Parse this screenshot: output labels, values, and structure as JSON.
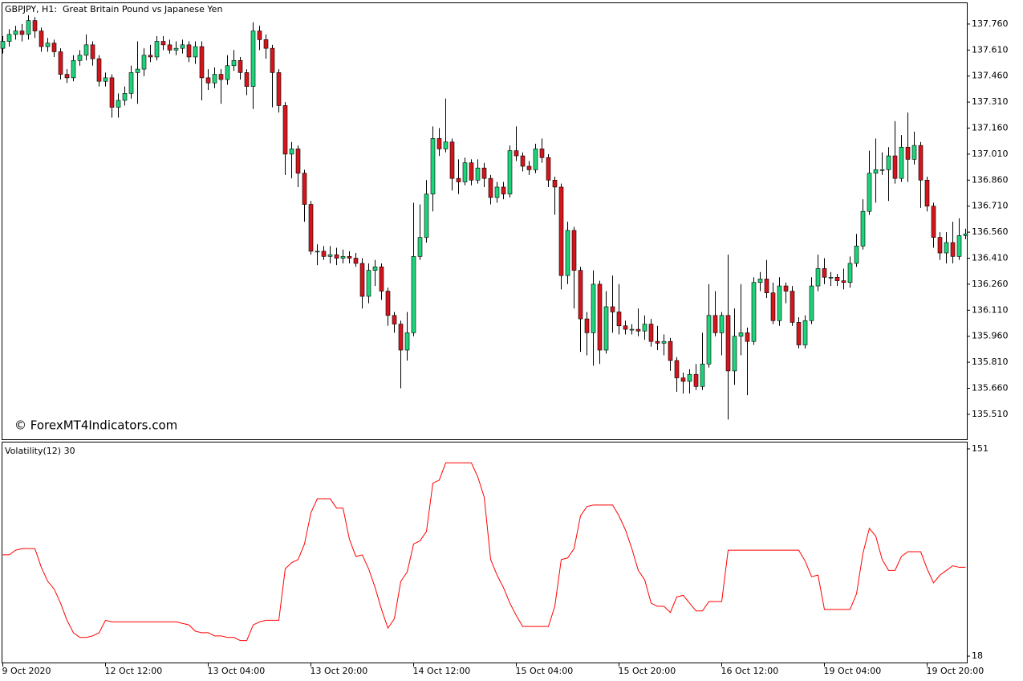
{
  "chart_data": [
    {
      "type": "candlestick",
      "title": "GBPJPY, H1:  Great Britain Pound vs Japanese Yen",
      "annotation": "© ForexMT4Indicators.com",
      "up_color": "#1ed47a",
      "down_color": "#d4161c",
      "wick_color": "#000000",
      "categories": [
        "9 Oct 2020",
        null,
        null,
        null,
        null,
        null,
        null,
        null,
        null,
        null,
        null,
        null,
        null,
        null,
        null,
        null,
        "12 Oct 12:00",
        null,
        null,
        null,
        null,
        null,
        null,
        null,
        null,
        null,
        null,
        null,
        null,
        null,
        null,
        null,
        "13 Oct 04:00",
        null,
        null,
        null,
        null,
        null,
        null,
        null,
        null,
        null,
        null,
        null,
        null,
        null,
        null,
        null,
        "13 Oct 20:00",
        null,
        null,
        null,
        null,
        null,
        null,
        null,
        null,
        null,
        null,
        null,
        null,
        null,
        null,
        null,
        "14 Oct 12:00",
        null,
        null,
        null,
        null,
        null,
        null,
        null,
        null,
        null,
        null,
        null,
        null,
        null,
        null,
        null,
        "15 Oct 04:00",
        null,
        null,
        null,
        null,
        null,
        null,
        null,
        null,
        null,
        null,
        null,
        null,
        null,
        null,
        null,
        "15 Oct 20:00",
        null,
        null,
        null,
        null,
        null,
        null,
        null,
        null,
        null,
        null,
        null,
        null,
        null,
        null,
        null,
        "16 Oct 12:00",
        null,
        null,
        null,
        null,
        null,
        null,
        null,
        null,
        null,
        null,
        null,
        null,
        null,
        null,
        null,
        "19 Oct 04:00",
        null,
        null,
        null,
        null,
        null,
        null,
        null,
        null,
        null,
        null,
        null,
        null,
        null,
        null,
        null,
        "19 Oct 20:00",
        null,
        null,
        null,
        null,
        null,
        null
      ],
      "open": [
        137.62,
        137.66,
        137.7,
        137.72,
        137.7,
        137.78,
        137.72,
        137.63,
        137.65,
        137.6,
        137.47,
        137.45,
        137.55,
        137.58,
        137.64,
        137.56,
        137.43,
        137.45,
        137.28,
        137.32,
        137.36,
        137.48,
        137.5,
        137.58,
        137.57,
        137.66,
        137.64,
        137.61,
        137.62,
        137.64,
        137.57,
        137.63,
        137.45,
        137.42,
        137.47,
        137.44,
        137.52,
        137.55,
        137.48,
        137.4,
        137.72,
        137.67,
        137.62,
        137.48,
        137.29,
        137.01,
        137.04,
        136.9,
        136.72,
        136.45,
        136.45,
        136.42,
        136.43,
        136.41,
        136.42,
        136.41,
        136.38,
        136.19,
        136.34,
        136.36,
        136.22,
        136.08,
        136.03,
        135.88,
        135.98,
        136.42,
        136.53,
        136.78,
        137.1,
        137.04,
        137.08,
        136.87,
        136.85,
        136.96,
        136.86,
        136.93,
        136.87,
        136.76,
        136.82,
        136.78,
        137.03,
        137.0,
        136.94,
        136.92,
        137.04,
        136.99,
        136.86,
        136.82,
        136.31,
        136.57,
        136.34,
        136.06,
        135.98,
        136.26,
        135.88,
        136.13,
        136.1,
        136.02,
        136.0,
        136.0,
        135.99,
        136.03,
        135.93,
        135.92,
        135.93,
        135.82,
        135.72,
        135.7,
        135.74,
        135.67,
        135.8,
        136.08,
        135.98,
        136.08,
        135.76,
        135.96,
        135.98,
        135.93,
        136.27,
        136.29,
        136.21,
        136.05,
        136.25,
        136.22,
        136.04,
        135.91,
        136.05,
        136.25,
        136.35,
        136.3,
        136.3,
        136.28,
        136.27,
        136.38,
        136.48,
        136.68,
        136.9,
        136.92,
        136.92,
        137.0,
        136.87,
        137.05,
        136.98,
        137.06,
        136.86,
        136.71,
        136.53,
        136.44,
        136.5,
        136.42,
        136.54
      ],
      "high": [
        137.69,
        137.73,
        137.75,
        137.76,
        137.81,
        137.8,
        137.74,
        137.68,
        137.67,
        137.62,
        137.5,
        137.58,
        137.61,
        137.7,
        137.66,
        137.58,
        137.48,
        137.47,
        137.36,
        137.4,
        137.52,
        137.66,
        137.62,
        137.64,
        137.69,
        137.69,
        137.67,
        137.66,
        137.67,
        137.66,
        137.66,
        137.66,
        137.5,
        137.51,
        137.5,
        137.58,
        137.61,
        137.57,
        137.5,
        137.77,
        137.75,
        137.7,
        137.64,
        137.5,
        137.31,
        137.08,
        137.06,
        136.92,
        136.74,
        136.49,
        136.48,
        136.48,
        136.47,
        136.46,
        136.45,
        136.44,
        136.41,
        136.38,
        136.4,
        136.38,
        136.24,
        136.1,
        136.05,
        136.1,
        136.73,
        136.72,
        136.86,
        137.17,
        137.16,
        137.33,
        137.1,
        136.98,
        136.99,
        136.98,
        136.98,
        136.96,
        136.89,
        136.85,
        136.85,
        137.06,
        137.17,
        137.02,
        136.97,
        137.07,
        137.1,
        137.01,
        136.88,
        136.84,
        136.62,
        136.59,
        136.36,
        136.1,
        136.34,
        136.28,
        136.22,
        136.31,
        136.26,
        136.05,
        136.03,
        136.12,
        136.08,
        136.06,
        136.02,
        135.97,
        135.95,
        135.84,
        135.75,
        135.77,
        135.8,
        135.98,
        136.26,
        136.22,
        136.1,
        136.43,
        136.12,
        136.26,
        136.01,
        136.3,
        136.33,
        136.4,
        136.27,
        136.3,
        136.27,
        136.25,
        136.07,
        136.08,
        136.3,
        136.43,
        136.41,
        136.33,
        136.32,
        136.35,
        136.42,
        136.55,
        136.75,
        137.03,
        137.1,
        137.02,
        137.05,
        137.2,
        137.12,
        137.25,
        137.14,
        137.08,
        136.88,
        136.73,
        136.56,
        136.56,
        136.62,
        136.64,
        136.58
      ],
      "low": [
        137.59,
        137.63,
        137.67,
        137.66,
        137.67,
        137.68,
        137.6,
        137.6,
        137.57,
        137.44,
        137.42,
        137.43,
        137.52,
        137.55,
        137.52,
        137.4,
        137.4,
        137.22,
        137.22,
        137.29,
        137.33,
        137.3,
        137.46,
        137.54,
        137.55,
        137.61,
        137.59,
        137.58,
        137.59,
        137.54,
        137.53,
        137.32,
        137.38,
        137.39,
        137.3,
        137.41,
        137.49,
        137.44,
        137.35,
        137.27,
        137.61,
        137.56,
        137.28,
        137.25,
        136.89,
        136.87,
        136.82,
        136.62,
        136.43,
        136.37,
        136.4,
        136.38,
        136.37,
        136.38,
        136.38,
        136.36,
        136.12,
        136.15,
        136.25,
        136.17,
        136.02,
        135.98,
        135.66,
        135.82,
        135.96,
        136.4,
        136.5,
        136.68,
        137.0,
        137.02,
        136.8,
        136.78,
        136.83,
        136.83,
        136.84,
        136.82,
        136.72,
        136.73,
        136.75,
        136.76,
        136.97,
        136.91,
        136.89,
        136.9,
        136.96,
        136.82,
        136.66,
        136.23,
        136.26,
        136.12,
        135.87,
        135.85,
        135.79,
        135.8,
        135.86,
        135.98,
        135.97,
        135.97,
        135.97,
        135.96,
        135.94,
        135.9,
        135.88,
        135.85,
        135.76,
        135.64,
        135.63,
        135.63,
        135.65,
        135.65,
        135.78,
        135.96,
        135.85,
        135.48,
        135.68,
        135.85,
        135.62,
        135.91,
        136.22,
        136.18,
        136.03,
        136.02,
        136.15,
        136.02,
        135.89,
        135.89,
        136.03,
        136.22,
        136.26,
        136.25,
        136.25,
        136.23,
        136.24,
        136.36,
        136.46,
        136.66,
        136.73,
        136.89,
        136.74,
        136.84,
        136.85,
        136.85,
        136.95,
        136.7,
        136.68,
        136.47,
        136.4,
        136.38,
        136.38,
        136.4,
        136.52
      ],
      "close": [
        137.66,
        137.7,
        137.72,
        137.7,
        137.78,
        137.72,
        137.63,
        137.65,
        137.6,
        137.47,
        137.45,
        137.55,
        137.58,
        137.64,
        137.56,
        137.43,
        137.45,
        137.28,
        137.32,
        137.36,
        137.48,
        137.5,
        137.58,
        137.57,
        137.66,
        137.64,
        137.61,
        137.62,
        137.64,
        137.57,
        137.63,
        137.45,
        137.42,
        137.47,
        137.44,
        137.52,
        137.55,
        137.48,
        137.4,
        137.72,
        137.67,
        137.62,
        137.48,
        137.29,
        137.01,
        137.04,
        136.9,
        136.72,
        136.45,
        136.45,
        136.42,
        136.43,
        136.41,
        136.42,
        136.41,
        136.38,
        136.19,
        136.34,
        136.36,
        136.22,
        136.08,
        136.03,
        135.88,
        135.98,
        136.42,
        136.53,
        136.78,
        137.1,
        137.04,
        137.08,
        136.87,
        136.85,
        136.96,
        136.86,
        136.93,
        136.87,
        136.76,
        136.82,
        136.78,
        137.03,
        137.0,
        136.94,
        136.92,
        137.04,
        136.99,
        136.86,
        136.82,
        136.31,
        136.57,
        136.34,
        136.06,
        135.98,
        136.26,
        135.88,
        136.13,
        136.1,
        136.02,
        136.0,
        136.0,
        135.99,
        136.03,
        135.93,
        135.92,
        135.93,
        135.82,
        135.72,
        135.7,
        135.74,
        135.67,
        135.8,
        136.08,
        135.98,
        136.08,
        135.76,
        135.96,
        135.98,
        135.93,
        136.27,
        136.29,
        136.21,
        136.05,
        136.25,
        136.22,
        136.04,
        135.91,
        136.05,
        136.25,
        136.35,
        136.3,
        136.3,
        136.28,
        136.27,
        136.38,
        136.48,
        136.68,
        136.9,
        136.92,
        136.92,
        137.0,
        136.87,
        137.05,
        136.98,
        137.06,
        136.86,
        136.71,
        136.53,
        136.44,
        136.5,
        136.42,
        136.54,
        136.55
      ],
      "ylim": [
        135.366,
        137.88
      ],
      "yticks": [
        {
          "value": 137.76,
          "label": "137.760"
        },
        {
          "value": 137.61,
          "label": "137.610"
        },
        {
          "value": 137.46,
          "label": "137.460"
        },
        {
          "value": 137.31,
          "label": "137.310"
        },
        {
          "value": 137.16,
          "label": "137.160"
        },
        {
          "value": 137.01,
          "label": "137.010"
        },
        {
          "value": 136.86,
          "label": "136.860"
        },
        {
          "value": 136.71,
          "label": "136.710"
        },
        {
          "value": 136.56,
          "label": "136.560"
        },
        {
          "value": 136.41,
          "label": "136.410"
        },
        {
          "value": 136.26,
          "label": "136.260"
        },
        {
          "value": 136.11,
          "label": "136.110"
        },
        {
          "value": 135.96,
          "label": "135.960"
        },
        {
          "value": 135.81,
          "label": "135.810"
        },
        {
          "value": 135.66,
          "label": "135.660"
        },
        {
          "value": 135.51,
          "label": "135.510"
        }
      ]
    },
    {
      "type": "line",
      "title": "Volatility(12) 30",
      "color": "#ff0000",
      "values": [
        83,
        83,
        86,
        87,
        87,
        87,
        75,
        66,
        61,
        52,
        41,
        33,
        30,
        30,
        31,
        33,
        41,
        40,
        40,
        40,
        40,
        40,
        40,
        40,
        40,
        40,
        40,
        40,
        39,
        38,
        34,
        33,
        33,
        31,
        31,
        30,
        30,
        28,
        28,
        38,
        40,
        41,
        41,
        41,
        74,
        78,
        80,
        90,
        110,
        119,
        119,
        119,
        113,
        113,
        93,
        82,
        83,
        74,
        62,
        48,
        36,
        42,
        66,
        72,
        90,
        92,
        98,
        129,
        131,
        142,
        142,
        142,
        142,
        142,
        133,
        120,
        80,
        70,
        62,
        52,
        44,
        37,
        37,
        37,
        37,
        37,
        50,
        80,
        81,
        87,
        108,
        114,
        115,
        115,
        115,
        115,
        108,
        99,
        87,
        73,
        67,
        52,
        50,
        50,
        46,
        56,
        57,
        52,
        47,
        47,
        53,
        53,
        53,
        86,
        86,
        86,
        86,
        86,
        86,
        86,
        86,
        86,
        86,
        86,
        86,
        79,
        69,
        70,
        48,
        48,
        48,
        48,
        48,
        58,
        84,
        100,
        95,
        80,
        73,
        73,
        82,
        85,
        85,
        85,
        74,
        65,
        70,
        73,
        76,
        75,
        75
      ],
      "ylim": [
        13.9,
        155.1
      ],
      "yticks": [
        18,
        151
      ]
    }
  ]
}
